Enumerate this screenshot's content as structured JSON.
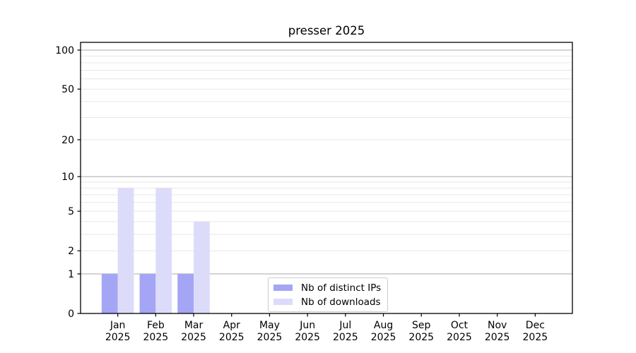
{
  "title": "presser 2025",
  "colors": {
    "distinct_ips": "#a5a5f6",
    "downloads": "#dcdcfa",
    "grid_major": "#b3b3b3",
    "grid_minor": "#e7e7e7",
    "axis": "#000000",
    "text": "#000000",
    "legend_border": "#cccccc"
  },
  "legend": {
    "items": [
      {
        "label": "Nb of distinct IPs",
        "color_key": "distinct_ips"
      },
      {
        "label": "Nb of downloads",
        "color_key": "downloads"
      }
    ]
  },
  "chart_data": {
    "type": "bar",
    "title": "presser 2025",
    "categories": [
      "Jan",
      "Feb",
      "Mar",
      "Apr",
      "May",
      "Jun",
      "Jul",
      "Aug",
      "Sep",
      "Oct",
      "Nov",
      "Dec"
    ],
    "x_year_label": "2025",
    "series": [
      {
        "name": "Nb of distinct IPs",
        "color_key": "distinct_ips",
        "values": [
          1,
          1,
          1,
          0,
          0,
          0,
          0,
          0,
          0,
          0,
          0,
          0
        ]
      },
      {
        "name": "Nb of downloads",
        "color_key": "downloads",
        "values": [
          8,
          8,
          4,
          0,
          0,
          0,
          0,
          0,
          0,
          0,
          0,
          0
        ]
      }
    ],
    "yscale": "log10(1+y)",
    "ylim": [
      0,
      114.7
    ],
    "yticks": [
      0,
      1,
      2,
      5,
      10,
      20,
      50,
      100
    ],
    "grid_major_values": [
      1,
      10,
      100
    ],
    "grid_minor_values": [
      2,
      3,
      4,
      5,
      6,
      7,
      8,
      9,
      20,
      30,
      40,
      50,
      60,
      70,
      80,
      90
    ],
    "grid": "on",
    "legend_position": "lower center"
  }
}
